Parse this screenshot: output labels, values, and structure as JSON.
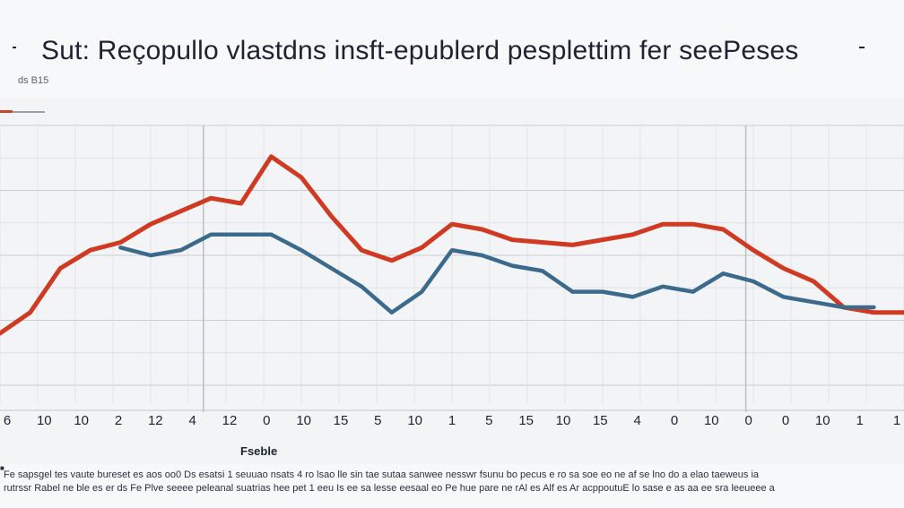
{
  "chart_data": {
    "type": "line",
    "title": "Sut: Reçopullo vlastdns insft-epublerd pesplettim fer seePeses",
    "subtitle": "ds B15",
    "xlabel": "Fseble",
    "ylabel": "",
    "x_tick_labels": [
      "6",
      "10",
      "10",
      "2",
      "12",
      "4",
      "12",
      "0",
      "10",
      "15",
      "5",
      "10",
      "1",
      "5",
      "15",
      "10",
      "15",
      "4",
      "0",
      "10",
      "0",
      "0",
      "10",
      "1",
      "1"
    ],
    "x": [
      0,
      1,
      2,
      3,
      4,
      5,
      6,
      7,
      8,
      9,
      10,
      11,
      12,
      13,
      14,
      15,
      16,
      17,
      18,
      19,
      20,
      21,
      22,
      23,
      24,
      25,
      26,
      27,
      28,
      29,
      30
    ],
    "xlim": [
      0,
      30
    ],
    "ylim": [
      0,
      100
    ],
    "grid": true,
    "series": [
      {
        "color": "#d13a22",
        "values": [
          20,
          28,
          45,
          52,
          55,
          62,
          67,
          72,
          70,
          88,
          80,
          65,
          52,
          48,
          53,
          62,
          60,
          56,
          55,
          54,
          56,
          58,
          62,
          62,
          60,
          52,
          45,
          40,
          30,
          28,
          28
        ]
      },
      {
        "color": "#3b6a8c",
        "values": [
          null,
          null,
          null,
          null,
          53,
          50,
          52,
          58,
          58,
          58,
          52,
          45,
          38,
          28,
          36,
          52,
          50,
          46,
          44,
          36,
          36,
          34,
          38,
          36,
          43,
          40,
          34,
          32,
          30,
          30,
          null
        ]
      }
    ]
  },
  "caption": {
    "line1": "Fe sapsgel tes vaute bureset es aos oo0 Ds esatsi 1 seuuao nsats 4 ro lsao lle sin tae sutaa sanwee nesswr fsunu bo pecus e ro sa soe eo ne af se lno do a elao taeweus ia",
    "line2": "rutrssr Rabel ne ble es er ds Fe Plve seeee peleanal suatrias hee pet 1 eeu Is ee sa lesse eesaal eo Pe hue pare ne rAl es Alf es Ar acppoutuE lo sase e as aa ee sra leeueee a"
  }
}
